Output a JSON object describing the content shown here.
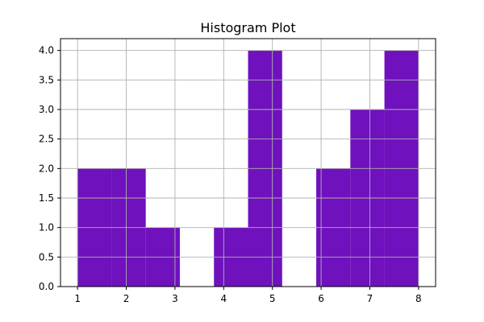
{
  "chart_data": {
    "type": "bar",
    "title": "Histogram Plot",
    "xlabel": "",
    "ylabel": "",
    "bin_edges": [
      1.0,
      1.7,
      2.4,
      3.1,
      3.8,
      4.5,
      5.2,
      5.9,
      6.6,
      7.3,
      8.0
    ],
    "counts": [
      2,
      2,
      1,
      0,
      1,
      4,
      0,
      2,
      3,
      4
    ],
    "xlim": [
      0.65,
      8.35
    ],
    "ylim": [
      0,
      4.2
    ],
    "xticks": [
      1,
      2,
      3,
      4,
      5,
      6,
      7,
      8
    ],
    "yticks": [
      0.0,
      0.5,
      1.0,
      1.5,
      2.0,
      2.5,
      3.0,
      3.5,
      4.0
    ],
    "xtick_labels": [
      "1",
      "2",
      "3",
      "4",
      "5",
      "6",
      "7",
      "8"
    ],
    "ytick_labels": [
      "0.0",
      "0.5",
      "1.0",
      "1.5",
      "2.0",
      "2.5",
      "3.0",
      "3.5",
      "4.0"
    ],
    "grid": true,
    "bar_color": "#6f11bd",
    "grid_color": "#b0b0b0"
  }
}
